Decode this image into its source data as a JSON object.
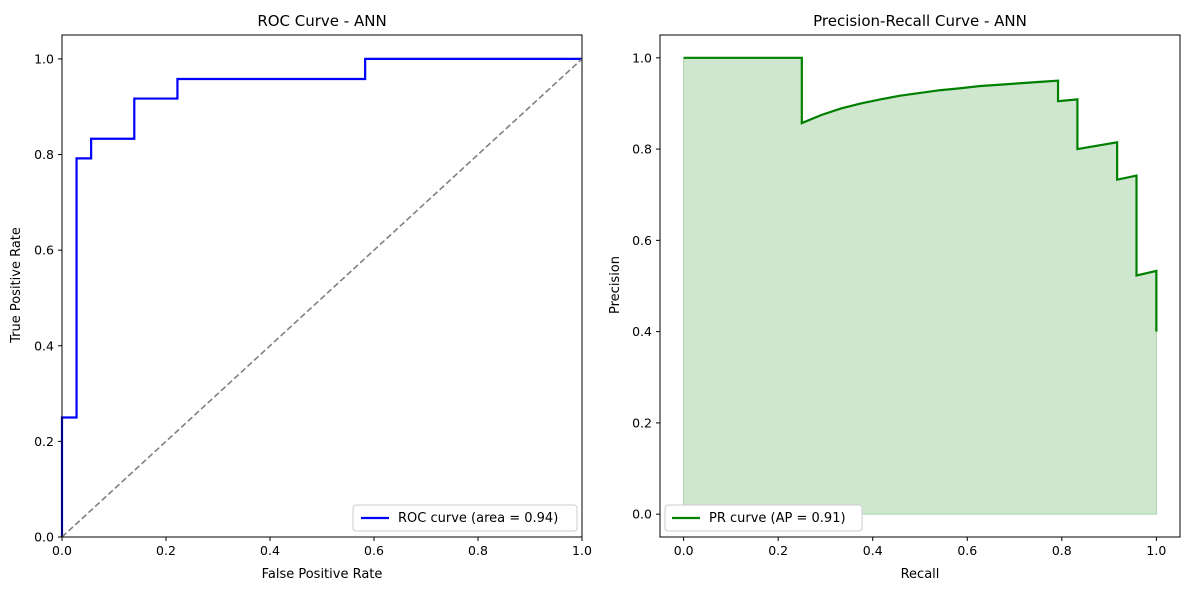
{
  "chart_data": [
    {
      "type": "line",
      "title": "ROC Curve - ANN",
      "xlabel": "False Positive Rate",
      "ylabel": "True Positive Rate",
      "xlim": [
        0.0,
        1.0
      ],
      "ylim": [
        0.0,
        1.05
      ],
      "xticks": [
        "0.0",
        "0.2",
        "0.4",
        "0.6",
        "0.8",
        "1.0"
      ],
      "yticks": [
        "0.0",
        "0.2",
        "0.4",
        "0.6",
        "0.8",
        "1.0"
      ],
      "grid": false,
      "legend_position": "lower-right",
      "series": [
        {
          "name": "ROC curve (area = 0.94)",
          "color": "#0000ff",
          "style": "solid",
          "x": [
            0.0,
            0.0,
            0.028,
            0.028,
            0.056,
            0.056,
            0.139,
            0.139,
            0.222,
            0.222,
            0.583,
            0.583,
            1.0
          ],
          "y": [
            0.0,
            0.25,
            0.25,
            0.792,
            0.792,
            0.833,
            0.833,
            0.917,
            0.917,
            0.958,
            0.958,
            1.0,
            1.0
          ]
        },
        {
          "name": "",
          "color": "#808080",
          "style": "dashed",
          "x": [
            0.0,
            1.0
          ],
          "y": [
            0.0,
            1.0
          ]
        }
      ]
    },
    {
      "type": "area",
      "title": "Precision-Recall Curve - ANN",
      "xlabel": "Recall",
      "ylabel": "Precision",
      "xlim": [
        -0.05,
        1.05
      ],
      "ylim": [
        -0.05,
        1.05
      ],
      "xticks": [
        "0.0",
        "0.2",
        "0.4",
        "0.6",
        "0.8",
        "1.0"
      ],
      "yticks": [
        "0.0",
        "0.2",
        "0.4",
        "0.6",
        "0.8",
        "1.0"
      ],
      "grid": false,
      "legend_position": "lower-left",
      "fill_color": "#cfe6cf",
      "series": [
        {
          "name": "PR curve (AP = 0.91)",
          "color": "#008000",
          "style": "solid",
          "x": [
            0.0,
            0.25,
            0.25,
            0.292,
            0.333,
            0.375,
            0.417,
            0.458,
            0.5,
            0.542,
            0.583,
            0.625,
            0.667,
            0.708,
            0.75,
            0.792,
            0.792,
            0.833,
            0.833,
            0.917,
            0.917,
            0.958,
            0.958,
            1.0,
            1.0
          ],
          "y": [
            1.0,
            1.0,
            0.857,
            0.875,
            0.889,
            0.9,
            0.909,
            0.917,
            0.923,
            0.929,
            0.933,
            0.938,
            0.941,
            0.944,
            0.947,
            0.95,
            0.905,
            0.909,
            0.8,
            0.815,
            0.733,
            0.742,
            0.523,
            0.533,
            0.4
          ]
        }
      ]
    }
  ]
}
